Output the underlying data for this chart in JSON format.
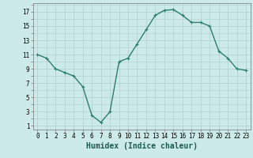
{
  "x": [
    0,
    1,
    2,
    3,
    4,
    5,
    6,
    7,
    8,
    9,
    10,
    11,
    12,
    13,
    14,
    15,
    16,
    17,
    18,
    19,
    20,
    21,
    22,
    23
  ],
  "y": [
    11,
    10.5,
    9,
    8.5,
    8,
    6.5,
    2.5,
    1.5,
    3,
    10,
    10.5,
    12.5,
    14.5,
    16.5,
    17.2,
    17.3,
    16.5,
    15.5,
    15.5,
    15,
    11.5,
    10.5,
    9,
    8.8
  ],
  "line_color": "#2e7d6e",
  "marker": "+",
  "marker_size": 3,
  "bg_color": "#cceae7",
  "grid_color": "#b0d0cc",
  "xlabel": "Humidex (Indice chaleur)",
  "xlabel_fontsize": 7,
  "ylabel_ticks": [
    1,
    3,
    5,
    7,
    9,
    11,
    13,
    15,
    17
  ],
  "xlim": [
    -0.5,
    23.5
  ],
  "ylim": [
    0.5,
    18.2
  ],
  "xticks": [
    0,
    1,
    2,
    3,
    4,
    5,
    6,
    7,
    8,
    9,
    10,
    11,
    12,
    13,
    14,
    15,
    16,
    17,
    18,
    19,
    20,
    21,
    22,
    23
  ],
  "tick_fontsize": 5.5,
  "line_width": 1.0
}
